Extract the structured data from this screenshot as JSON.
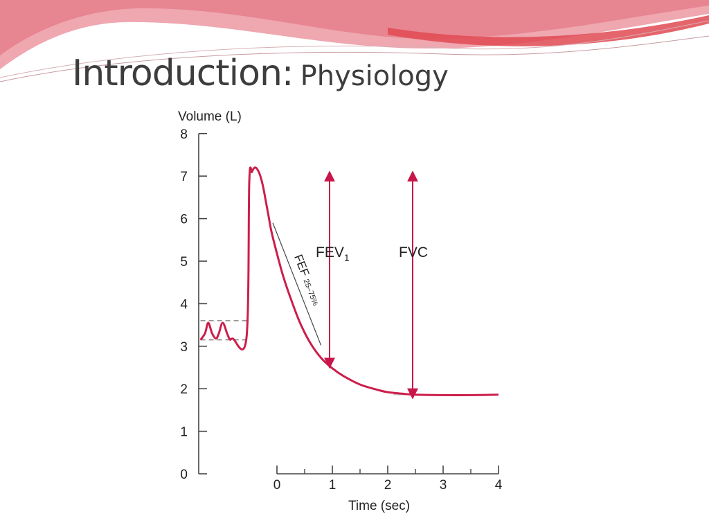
{
  "slide": {
    "title_main": "Introduction:",
    "title_sub": "Physiology"
  },
  "colors": {
    "curve": "#cc1e4a",
    "arrow": "#c8164a",
    "dashed": "#8a8a8a",
    "header_wave_light": "#e98a96",
    "header_wave_deep": "#e04a52",
    "title": "#3d3d3d"
  },
  "chart_data": {
    "type": "line",
    "title": "",
    "ylabel": "Volume (L)",
    "xlabel": "Time (sec)",
    "ylim": [
      0,
      8
    ],
    "xlim": [
      -1.4,
      4
    ],
    "y_ticks": [
      "0",
      "1",
      "2",
      "3",
      "4",
      "5",
      "6",
      "7",
      "8"
    ],
    "x_ticks": [
      "0",
      "1",
      "2",
      "3",
      "4"
    ],
    "grid": false,
    "series": [
      {
        "name": "",
        "x": [
          -1.38,
          -1.3,
          -1.24,
          -1.17,
          -1.1,
          -1.05,
          -0.98,
          -0.9,
          -0.85,
          -0.8,
          -0.55,
          -0.5,
          -0.45,
          -0.4,
          -0.35,
          -0.3,
          -0.25,
          -0.2,
          -0.15,
          -0.1,
          0.0,
          0.1,
          0.2,
          0.4,
          0.6,
          0.8,
          1.0,
          1.2,
          1.5,
          1.8,
          2.0,
          2.3,
          2.5,
          3.0,
          3.5,
          4.0
        ],
        "y": [
          3.15,
          3.3,
          3.55,
          3.3,
          3.18,
          3.3,
          3.55,
          3.3,
          3.16,
          3.18,
          3.2,
          6.85,
          7.1,
          7.2,
          7.15,
          7.0,
          6.75,
          6.4,
          6.05,
          5.7,
          5.18,
          4.7,
          4.3,
          3.6,
          3.08,
          2.72,
          2.48,
          2.3,
          2.1,
          1.98,
          1.92,
          1.88,
          1.86,
          1.85,
          1.85,
          1.86
        ]
      }
    ],
    "dashed_lines": [
      {
        "name": "tidal-upper-dashed",
        "y": 3.6,
        "x": [
          -1.38,
          -0.55
        ]
      },
      {
        "name": "tidal-lower-dashed",
        "y": 3.15,
        "x": [
          -1.38,
          -0.55
        ]
      }
    ],
    "annotations": [
      {
        "label": "FEV",
        "subscript": "1",
        "x": 0.95,
        "y_from": 7.0,
        "y_to": 2.6
      },
      {
        "label": "FVC",
        "x": 2.45,
        "y_from": 7.0,
        "y_to": 1.88
      }
    ],
    "fef_segment": {
      "label": "FEF",
      "label_sub": "25–75%",
      "x": [
        -0.15,
        0.72
      ],
      "y": [
        5.9,
        3.02
      ]
    }
  }
}
